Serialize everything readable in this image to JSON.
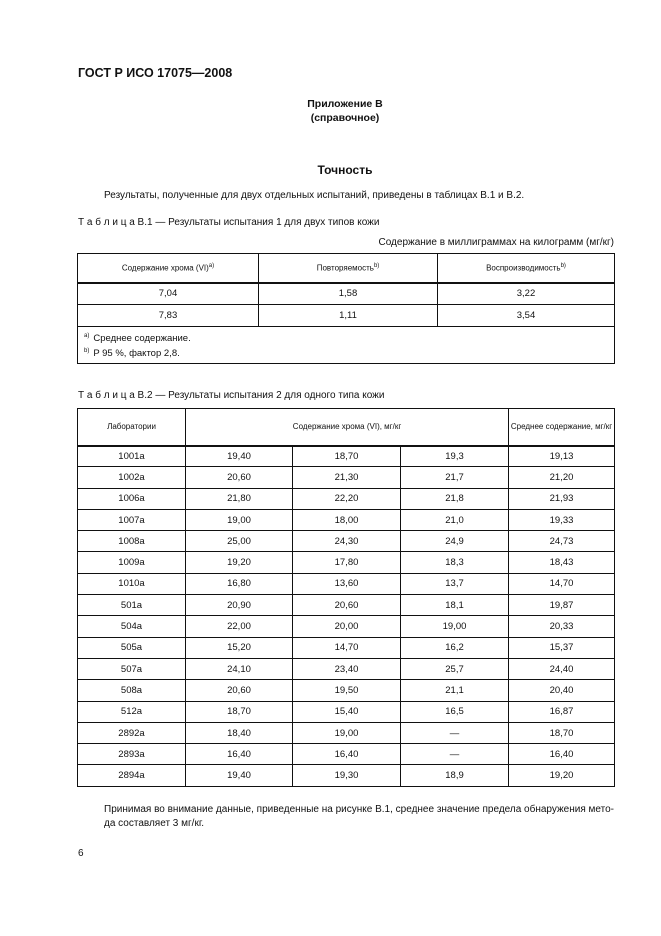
{
  "header": "ГОСТ Р ИСО 17075—2008",
  "annex": {
    "title": "Приложение В",
    "subtitle": "(справочное)"
  },
  "section_title": "Точность",
  "intro": "Результаты, полученные для двух отдельных испытаний, приведены в таблицах В.1 и В.2.",
  "table1": {
    "caption": "Т а б л и ц а  В.1 — Результаты испытания 1 для двух типов кожи",
    "units": "Содержание в миллиграммах на килограмм (мг/кг)",
    "headers": [
      {
        "text": "Содержание хрома (VI)",
        "sup": "a)"
      },
      {
        "text": "Повторяемость",
        "sup": "b)"
      },
      {
        "text": "Воспроизводимость",
        "sup": "b)"
      }
    ],
    "rows": [
      [
        "7,04",
        "1,58",
        "3,22"
      ],
      [
        "7,83",
        "1,11",
        "3,54"
      ]
    ],
    "footnotes": [
      {
        "mark": "a)",
        "text": "Среднее содержание."
      },
      {
        "mark": "b)",
        "text": "P 95 %, фактор 2,8."
      }
    ]
  },
  "table2": {
    "caption": "Т а б л и ц а  В.2 — Результаты испытания 2 для одного типа кожи",
    "headers": [
      "Лаборатории",
      "Содержание хрома (VI), мг/кг",
      "Среднее содержание, мг/кг"
    ],
    "rows": [
      [
        "1001a",
        "19,40",
        "18,70",
        "19,3",
        "19,13"
      ],
      [
        "1002a",
        "20,60",
        "21,30",
        "21,7",
        "21,20"
      ],
      [
        "1006a",
        "21,80",
        "22,20",
        "21,8",
        "21,93"
      ],
      [
        "1007a",
        "19,00",
        "18,00",
        "21,0",
        "19,33"
      ],
      [
        "1008a",
        "25,00",
        "24,30",
        "24,9",
        "24,73"
      ],
      [
        "1009a",
        "19,20",
        "17,80",
        "18,3",
        "18,43"
      ],
      [
        "1010a",
        "16,80",
        "13,60",
        "13,7",
        "14,70"
      ],
      [
        "501a",
        "20,90",
        "20,60",
        "18,1",
        "19,87"
      ],
      [
        "504a",
        "22,00",
        "20,00",
        "19,00",
        "20,33"
      ],
      [
        "505a",
        "15,20",
        "14,70",
        "16,2",
        "15,37"
      ],
      [
        "507a",
        "24,10",
        "23,40",
        "25,7",
        "24,40"
      ],
      [
        "508a",
        "20,60",
        "19,50",
        "21,1",
        "20,40"
      ],
      [
        "512a",
        "18,70",
        "15,40",
        "16,5",
        "16,87"
      ],
      [
        "2892a",
        "18,40",
        "19,00",
        "—",
        "18,70"
      ],
      [
        "2893a",
        "16,40",
        "16,40",
        "—",
        "16,40"
      ],
      [
        "2894a",
        "19,40",
        "19,30",
        "18,9",
        "19,20"
      ]
    ]
  },
  "closing": "Принимая во внимание данные, приведенные на рисунке В.1, среднее значение предела обнаружения мето-да составляет 3 мг/кг.",
  "page_number": "6"
}
